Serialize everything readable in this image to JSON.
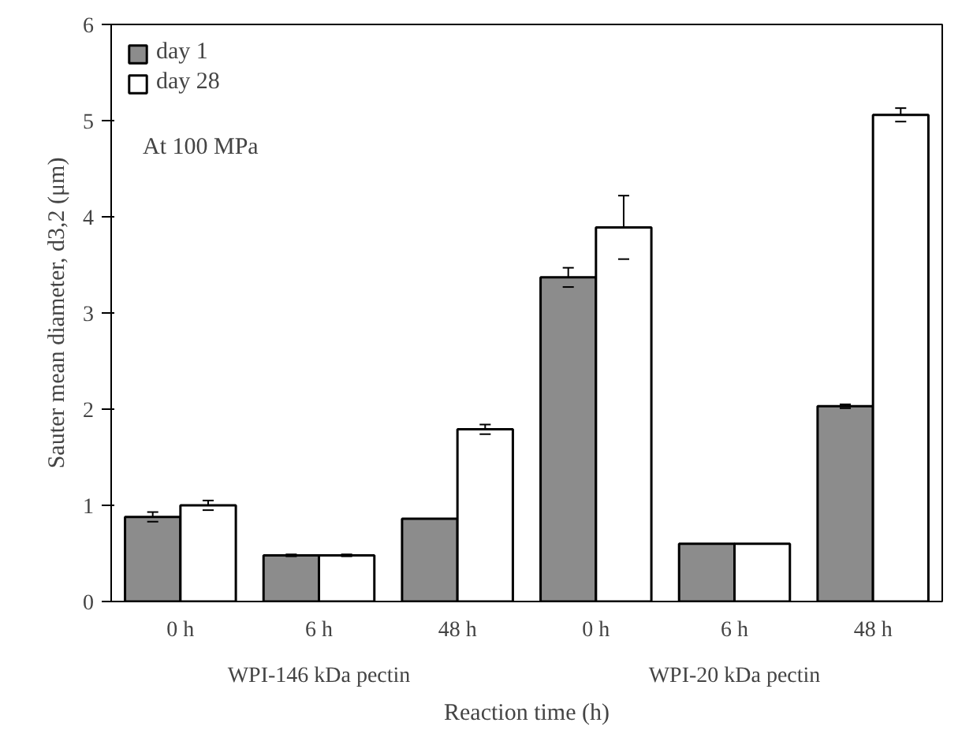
{
  "chart_data": {
    "type": "bar",
    "categories": [
      "0 h",
      "6 h",
      "48 h",
      "0 h",
      "6 h",
      "48 h"
    ],
    "xlabel": "Reaction time (h)",
    "ylabel": "Sauter mean diameter, d3,2 (μm)",
    "annotations": [
      "At 100 MPa",
      "WPI-146 kDa pectin",
      "WPI-20 kDa pectin"
    ],
    "series": [
      {
        "name": "day 1",
        "color": "#8c8c8c",
        "values": [
          0.88,
          0.48,
          0.86,
          3.37,
          0.6,
          2.03
        ],
        "errors": [
          0.05,
          0.01,
          null,
          0.1,
          null,
          0.02
        ]
      },
      {
        "name": "day 28",
        "color": "#ffffff",
        "values": [
          1.0,
          0.48,
          1.79,
          3.89,
          0.6,
          5.06
        ],
        "errors": [
          0.05,
          0.01,
          0.05,
          0.33,
          null,
          0.07
        ]
      }
    ],
    "ylim": [
      0,
      6
    ],
    "yticks": [
      0,
      1,
      2,
      3,
      4,
      5,
      6
    ],
    "grid": false,
    "legend": "top left"
  }
}
